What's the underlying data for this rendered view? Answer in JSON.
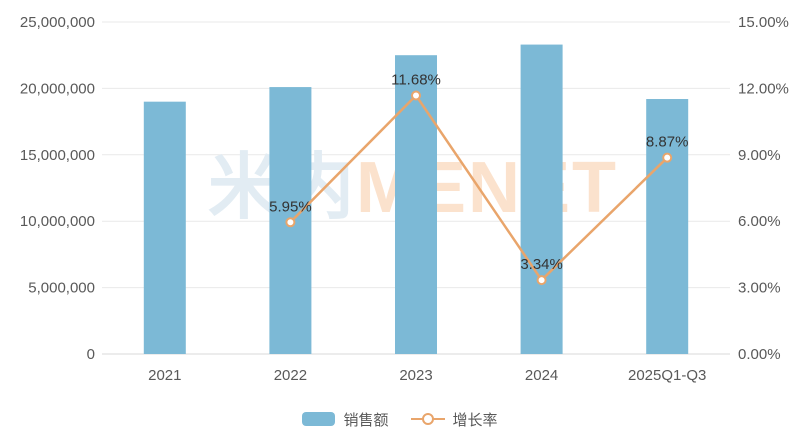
{
  "chart_data": {
    "type": "combo",
    "title": "",
    "categories": [
      "2021",
      "2022",
      "2023",
      "2024",
      "2025Q1-Q3"
    ],
    "series": [
      {
        "name": "销售额",
        "type": "bar",
        "axis": "left",
        "color": "#7cb9d6",
        "values": [
          19000000,
          20100000,
          22500000,
          23300000,
          19200000
        ]
      },
      {
        "name": "增长率",
        "type": "line",
        "axis": "right",
        "color": "#e9a56b",
        "marker_fill": "#ffffff",
        "values": [
          null,
          5.95,
          11.68,
          3.34,
          8.87
        ],
        "point_labels": [
          "",
          "5.95%",
          "11.68%",
          "3.34%",
          "8.87%"
        ]
      }
    ],
    "left_axis": {
      "min": 0,
      "max": 25000000,
      "step": 5000000,
      "tick_labels": [
        "0",
        "5,000,000",
        "10,000,000",
        "15,000,000",
        "20,000,000",
        "25,000,000"
      ]
    },
    "right_axis": {
      "min": 0,
      "max": 15,
      "step": 3,
      "tick_labels": [
        "0.00%",
        "3.00%",
        "6.00%",
        "9.00%",
        "12.00%",
        "15.00%"
      ]
    },
    "grid": true,
    "legend_position": "bottom"
  },
  "watermark": {
    "cn_text": "米内",
    "en_text": "MENET",
    "cn_color": "#e2ecf3",
    "en_color": "#fbe2cd"
  },
  "style": {
    "grid_color": "#e9e9e9",
    "baseline_color": "#d9d9d9",
    "axis_text_color": "#595959",
    "data_label_color": "#333333",
    "background": "#ffffff"
  }
}
